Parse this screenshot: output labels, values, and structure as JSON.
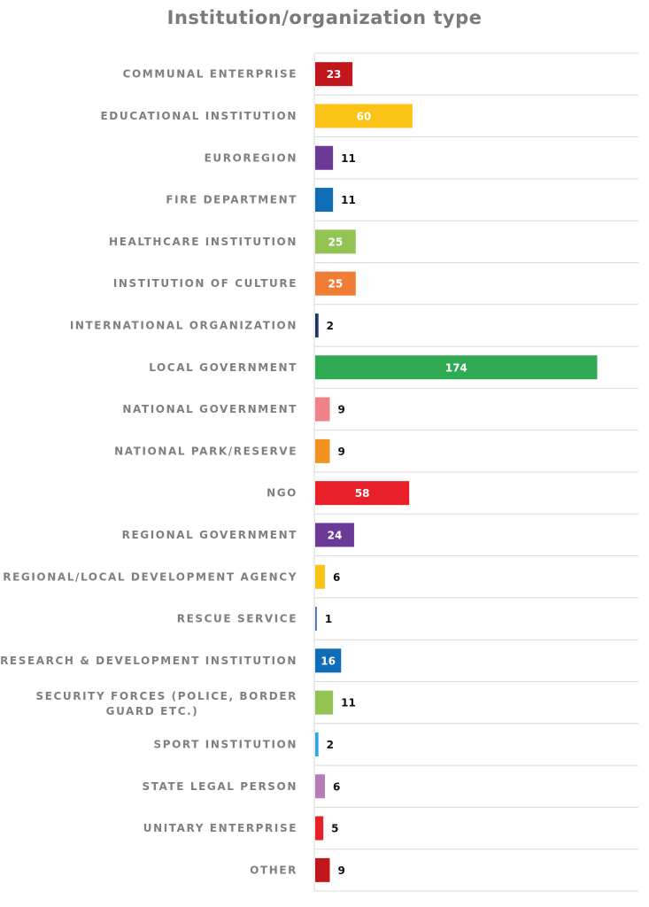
{
  "chart_data": {
    "type": "bar",
    "orientation": "horizontal",
    "title": "Institution/organization type",
    "xlabel": "",
    "ylabel": "",
    "grid": false,
    "xlim": [
      0,
      200
    ],
    "categories": [
      "COMMUNAL ENTERPRISE",
      "EDUCATIONAL INSTITUTION",
      "EUROREGION",
      "FIRE DEPARTMENT",
      "HEALTHCARE INSTITUTION",
      "INSTITUTION OF CULTURE",
      "INTERNATIONAL ORGANIZATION",
      "LOCAL GOVERNMENT",
      "NATIONAL GOVERNMENT",
      "NATIONAL PARK/RESERVE",
      "NGO",
      "REGIONAL GOVERNMENT",
      "REGIONAL/LOCAL DEVELOPMENT AGENCY",
      "RESCUE SERVICE",
      "RESEARCH & DEVELOPMENT INSTITUTION",
      "SECURITY FORCES (POLICE, BORDER GUARD ETC.)",
      "SPORT INSTITUTION",
      "STATE LEGAL PERSON",
      "UNITARY ENTERPRISE",
      "OTHER"
    ],
    "values": [
      23,
      60,
      11,
      11,
      25,
      25,
      2,
      174,
      9,
      9,
      58,
      24,
      6,
      1,
      16,
      11,
      2,
      6,
      5,
      9
    ],
    "colors": [
      "#c0161c",
      "#fbc316",
      "#6b3a96",
      "#0f6cb6",
      "#92c353",
      "#ef7d35",
      "#1e3461",
      "#2eaa52",
      "#ef8189",
      "#f29220",
      "#e8202a",
      "#6b3a96",
      "#fbc316",
      "#4a6fb3",
      "#0f6cb6",
      "#92c353",
      "#2fa8df",
      "#b77cb8",
      "#e8202a",
      "#c0161c"
    ],
    "label_inside": [
      true,
      true,
      false,
      false,
      true,
      true,
      false,
      true,
      false,
      false,
      true,
      true,
      false,
      false,
      true,
      false,
      false,
      false,
      false,
      false
    ]
  }
}
